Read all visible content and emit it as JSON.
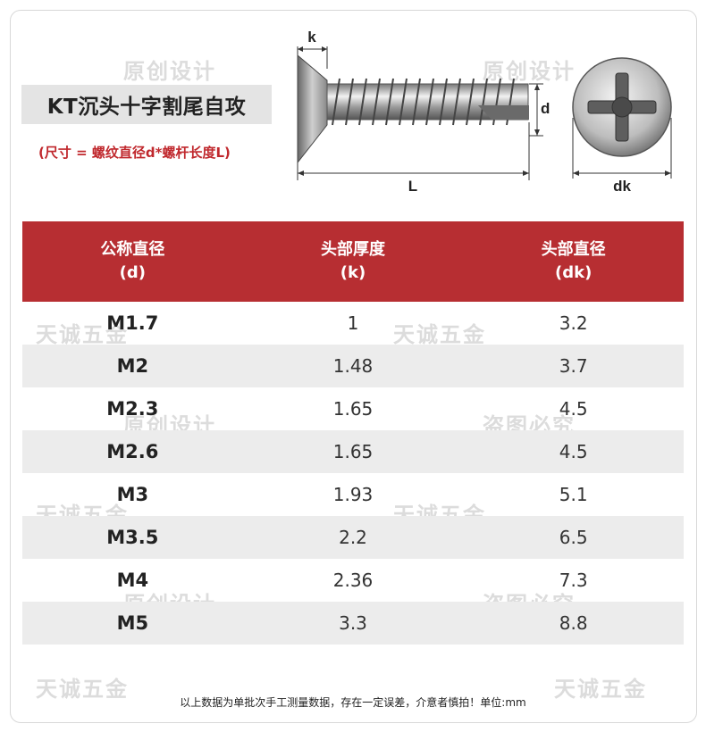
{
  "title": "KT沉头十字割尾自攻",
  "subtitle": "(尺寸 = 螺纹直径d*螺杆长度L)",
  "diagram": {
    "k": "k",
    "d": "d",
    "L": "L",
    "dk": "dk"
  },
  "table": {
    "headers": [
      {
        "name": "公称直径",
        "sym": "(d)"
      },
      {
        "name": "头部厚度",
        "sym": "(k)"
      },
      {
        "name": "头部直径",
        "sym": "(dk)"
      }
    ],
    "rows": [
      {
        "size": "M1.7",
        "k": "1",
        "dk": "3.2"
      },
      {
        "size": "M2",
        "k": "1.48",
        "dk": "3.7"
      },
      {
        "size": "M2.3",
        "k": "1.65",
        "dk": "4.5"
      },
      {
        "size": "M2.6",
        "k": "1.65",
        "dk": "4.5"
      },
      {
        "size": "M3",
        "k": "1.93",
        "dk": "5.1"
      },
      {
        "size": "M3.5",
        "k": "2.2",
        "dk": "6.5"
      },
      {
        "size": "M4",
        "k": "2.36",
        "dk": "7.3"
      },
      {
        "size": "M5",
        "k": "3.3",
        "dk": "8.8"
      }
    ]
  },
  "footer": "以上数据为单批次手工测量数据，存在一定误差，介意者慎拍！单位:mm",
  "watermarks": [
    "原创设计",
    "盗图必究",
    "天诚五金"
  ]
}
